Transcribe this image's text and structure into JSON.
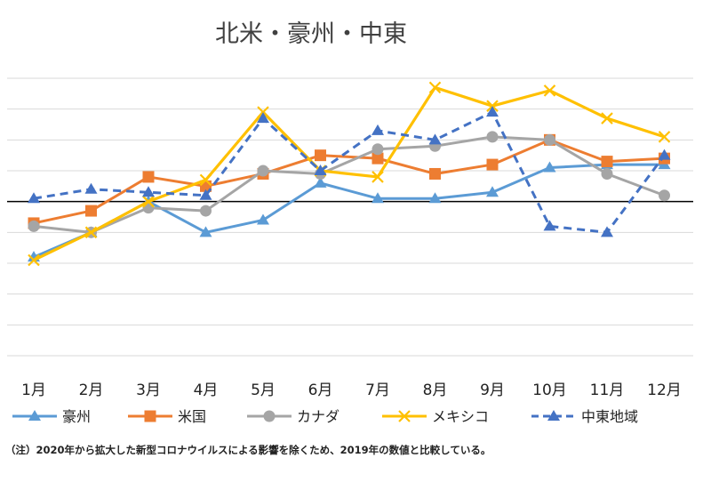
{
  "chart_data": {
    "type": "line",
    "title": "北米・豪州・中東",
    "categories": [
      "1月",
      "2月",
      "3月",
      "4月",
      "5月",
      "6月",
      "7月",
      "8月",
      "9月",
      "10月",
      "11月",
      "12月"
    ],
    "xlabel": "",
    "ylabel": "",
    "grid": true,
    "legend_position": "bottom",
    "series": [
      {
        "name": "豪州",
        "color": "#5B9BD5",
        "marker": "triangle",
        "dash": "solid",
        "values": [
          -18,
          -10,
          0,
          -10,
          -6,
          6,
          1,
          1,
          3,
          11,
          12,
          12
        ]
      },
      {
        "name": "米国",
        "color": "#ED7D31",
        "marker": "square",
        "dash": "solid",
        "values": [
          -7,
          -3,
          8,
          5,
          9,
          15,
          14,
          9,
          12,
          20,
          13,
          14
        ]
      },
      {
        "name": "カナダ",
        "color": "#A5A5A5",
        "marker": "circle",
        "dash": "solid",
        "values": [
          -8,
          -10,
          -2,
          -3,
          10,
          9,
          17,
          18,
          21,
          20,
          9,
          2
        ]
      },
      {
        "name": "メキシコ",
        "color": "#FFC000",
        "marker": "x",
        "dash": "solid",
        "values": [
          -19,
          -10,
          0,
          7,
          29,
          10,
          8,
          37,
          31,
          36,
          27,
          21
        ]
      },
      {
        "name": "中東地域",
        "color": "#4472C4",
        "marker": "triangle",
        "dash": "dashed",
        "values": [
          1,
          4,
          3,
          2,
          27,
          10,
          23,
          20,
          29,
          -8,
          -10,
          15
        ]
      }
    ],
    "baseline": 0,
    "ylim": [
      -50,
      40
    ]
  },
  "note": "（注）2020年から拡大した新型コロナウイルスによる影響を除くため、2019年の数値と比較している。"
}
